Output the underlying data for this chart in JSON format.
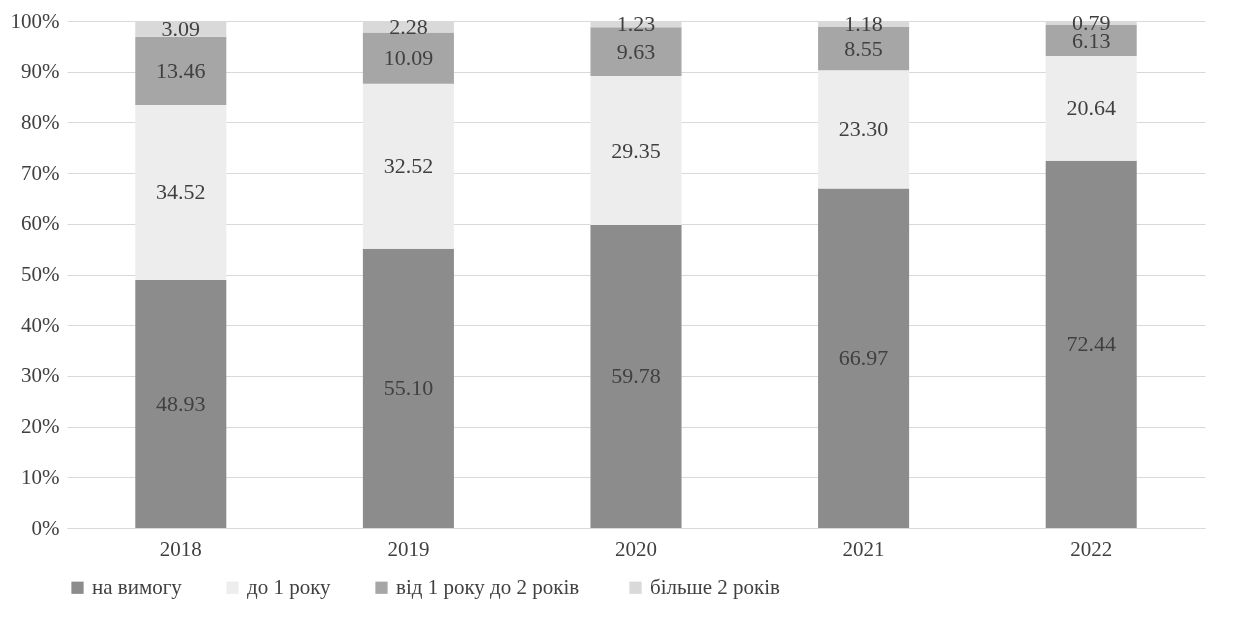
{
  "chart_data": {
    "type": "bar",
    "stacked": true,
    "categories": [
      "2018",
      "2019",
      "2020",
      "2021",
      "2022"
    ],
    "series": [
      {
        "name": "на вимогу",
        "color": "#8c8c8c",
        "values": [
          48.93,
          55.1,
          59.78,
          66.97,
          72.44
        ],
        "value_labels": [
          "48.93",
          "55.10",
          "59.78",
          "66.97",
          "72.44"
        ]
      },
      {
        "name": "до 1 року",
        "color": "#ededed",
        "values": [
          34.52,
          32.52,
          29.35,
          23.3,
          20.64
        ],
        "value_labels": [
          "34.52",
          "32.52",
          "29.35",
          "23.30",
          "20.64"
        ]
      },
      {
        "name": "від  1 року до 2 років",
        "color": "#a6a6a6",
        "values": [
          13.46,
          10.09,
          9.63,
          8.55,
          6.13
        ],
        "value_labels": [
          "13.46",
          "10.09",
          "9.63",
          "8.55",
          "6.13"
        ]
      },
      {
        "name": "більше 2 років",
        "color": "#d9d9d9",
        "values": [
          3.09,
          2.28,
          1.23,
          1.18,
          0.79
        ],
        "value_labels": [
          "3.09",
          "2.28",
          "1.23",
          "1.18",
          "0.79"
        ]
      }
    ],
    "ylim": [
      0,
      100
    ],
    "yticks": [
      {
        "value": 0,
        "label": "0%"
      },
      {
        "value": 10,
        "label": "10%"
      },
      {
        "value": 20,
        "label": "20%"
      },
      {
        "value": 30,
        "label": "30%"
      },
      {
        "value": 40,
        "label": "40%"
      },
      {
        "value": 50,
        "label": "50%"
      },
      {
        "value": 60,
        "label": "60%"
      },
      {
        "value": 70,
        "label": "70%"
      },
      {
        "value": 80,
        "label": "80%"
      },
      {
        "value": 90,
        "label": "90%"
      },
      {
        "value": 100,
        "label": "100%"
      }
    ],
    "grid": "y",
    "legend": "bottom"
  }
}
